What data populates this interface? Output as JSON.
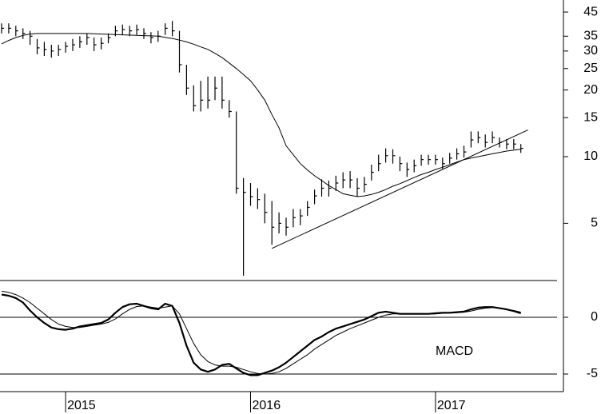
{
  "chart_data": {
    "type": "ohlc",
    "log_scale": true,
    "color": "#000000",
    "categories": [
      null,
      null,
      null,
      null,
      null,
      null,
      null,
      null,
      null,
      "2015",
      null,
      null,
      null,
      null,
      null,
      null,
      null,
      null,
      null,
      null,
      null,
      null,
      null,
      null,
      null,
      null,
      null,
      null,
      null,
      null,
      null,
      null,
      null,
      null,
      null,
      "2016",
      null,
      null,
      null,
      null,
      null,
      null,
      null,
      null,
      null,
      null,
      null,
      null,
      null,
      null,
      null,
      null,
      null,
      null,
      null,
      null,
      null,
      null,
      null,
      null,
      null,
      "2017",
      null,
      null,
      null,
      null,
      null,
      null,
      null,
      null,
      null,
      null,
      null,
      null
    ],
    "high": [
      40,
      40,
      39,
      38,
      37,
      34,
      33,
      32,
      32,
      33,
      34,
      35,
      36,
      34.5,
      34.5,
      36,
      39,
      39.5,
      39,
      39.5,
      38,
      36.5,
      37,
      40,
      41,
      37,
      26,
      21,
      22,
      23,
      23,
      23,
      18,
      16,
      8,
      7.6,
      7.2,
      6.8,
      6.3,
      5.6,
      5.3,
      5.8,
      5.8,
      6.3,
      7.1,
      7.9,
      7.8,
      8.2,
      8.5,
      8.6,
      8.0,
      8.1,
      9.2,
      10.2,
      10.9,
      10.8,
      10,
      9.4,
      9.7,
      10.2,
      10.2,
      10.2,
      9.9,
      10.4,
      10.9,
      11.2,
      13.0,
      13.0,
      12.6,
      13.0,
      12.2,
      12.0,
      12.0,
      11.4
    ],
    "low": [
      36,
      36,
      35,
      34,
      32,
      29,
      28.5,
      28,
      28.5,
      29.5,
      30,
      31,
      32,
      30,
      30.5,
      32.5,
      35,
      35.5,
      35,
      35.5,
      34,
      32.5,
      33,
      35.5,
      35,
      24,
      19,
      16,
      16,
      16.5,
      18,
      16.5,
      15,
      6.8,
      2.9,
      6.0,
      5.8,
      5.0,
      4.0,
      4.5,
      4.4,
      4.8,
      4.9,
      5.4,
      6.1,
      6.6,
      6.6,
      7.0,
      7.2,
      7.2,
      6.6,
      6.9,
      7.8,
      8.6,
      9.4,
      9.3,
      8.6,
      8.1,
      8.5,
      9.1,
      9.2,
      9.2,
      8.8,
      9.3,
      9.7,
      9.9,
      11.0,
      11.5,
      11.0,
      11.5,
      11.0,
      10.8,
      10.8,
      10.4
    ],
    "close": [
      38,
      38,
      37,
      36,
      35,
      31,
      30.5,
      30,
      30.5,
      31.5,
      32,
      33,
      34.5,
      32,
      32.5,
      34.5,
      37,
      37.5,
      37,
      37.5,
      36,
      34.5,
      35,
      38,
      37,
      26,
      20.4,
      17,
      18,
      18,
      20.4,
      18,
      16,
      7.2,
      6.9,
      6.6,
      6.4,
      5.6,
      4.8,
      5.0,
      4.8,
      5.3,
      5.4,
      5.9,
      6.65,
      7.2,
      7.2,
      7.6,
      7.85,
      7.85,
      7.2,
      7.5,
      8.5,
      9.3,
      10.1,
      10.1,
      9.3,
      8.75,
      9.1,
      9.7,
      9.7,
      9.7,
      9.3,
      9.85,
      10.3,
      10.5,
      11.9,
      12.2,
      11.6,
      12.2,
      11.6,
      11.4,
      11.4,
      10.9
    ],
    "moving_average": {
      "values": [
        32.3,
        33.5,
        34.5,
        35.3,
        35.8,
        36,
        36,
        36,
        36,
        36,
        36,
        36,
        36,
        35.9,
        35.8,
        35.7,
        35.6,
        35.5,
        35.4,
        35.3,
        35.2,
        35.1,
        35,
        34.6,
        34.2,
        33.6,
        33,
        32.2,
        31.3,
        30.5,
        29.3,
        28,
        26.5,
        25,
        23.5,
        22,
        20,
        18,
        15.5,
        13.5,
        11.2,
        10.2,
        9.3,
        8.7,
        8.2,
        7.8,
        7.4,
        7.1,
        6.8,
        6.7,
        6.6,
        6.65,
        6.75,
        6.9,
        7.1,
        7.35,
        7.55,
        7.8,
        8.05,
        8.3,
        8.5,
        8.75,
        8.95,
        9.2,
        9.45,
        9.7,
        9.85,
        10,
        10.15,
        10.3,
        10.45,
        10.6,
        10.7,
        10.8
      ]
    },
    "trendline": {
      "from": [
        38,
        3.85
      ],
      "to": [
        74,
        13.2
      ]
    },
    "ylim": [
      2.78,
      51
    ],
    "yticks": [
      5,
      10,
      15,
      20,
      25,
      30,
      35,
      45
    ],
    "macd": {
      "label": "MACD",
      "ylim": [
        -6.55,
        3.17
      ],
      "yticks": [
        0,
        -5
      ],
      "grid": true,
      "series": [
        {
          "color": "#000000",
          "width": 2.2,
          "values": [
            2.0,
            1.9,
            1.7,
            1.3,
            0.6,
            0.0,
            -0.5,
            -0.9,
            -1.05,
            -1.1,
            -1.0,
            -0.8,
            -0.7,
            -0.6,
            -0.5,
            -0.2,
            0.4,
            0.9,
            1.15,
            1.2,
            1.0,
            0.8,
            0.7,
            1.2,
            1.0,
            -0.5,
            -2.5,
            -4.0,
            -4.6,
            -4.8,
            -4.6,
            -4.2,
            -4.1,
            -4.5,
            -4.9,
            -5.1,
            -5.1,
            -4.9,
            -4.7,
            -4.4,
            -4.0,
            -3.5,
            -3.0,
            -2.5,
            -2.0,
            -1.7,
            -1.3,
            -1.0,
            -0.8,
            -0.6,
            -0.4,
            -0.2,
            0.1,
            0.4,
            0.5,
            0.4,
            0.3,
            0.3,
            0.3,
            0.3,
            0.3,
            0.35,
            0.4,
            0.4,
            0.45,
            0.5,
            0.7,
            0.85,
            0.9,
            0.9,
            0.8,
            0.7,
            0.55,
            0.35
          ]
        },
        {
          "color": "#000000",
          "width": 1,
          "values": [
            2.3,
            2.2,
            2.0,
            1.7,
            1.3,
            0.8,
            0.3,
            -0.2,
            -0.6,
            -0.8,
            -0.9,
            -0.9,
            -0.8,
            -0.7,
            -0.6,
            -0.45,
            -0.15,
            0.3,
            0.7,
            0.95,
            1.0,
            0.9,
            0.8,
            0.9,
            1.0,
            0.3,
            -1.0,
            -2.3,
            -3.3,
            -3.9,
            -4.2,
            -4.3,
            -4.3,
            -4.4,
            -4.6,
            -4.8,
            -4.95,
            -5.0,
            -4.95,
            -4.8,
            -4.5,
            -4.1,
            -3.7,
            -3.3,
            -2.8,
            -2.4,
            -2.0,
            -1.6,
            -1.3,
            -1.0,
            -0.75,
            -0.5,
            -0.25,
            0.0,
            0.2,
            0.3,
            0.3,
            0.3,
            0.3,
            0.3,
            0.3,
            0.3,
            0.35,
            0.38,
            0.4,
            0.45,
            0.55,
            0.7,
            0.8,
            0.85,
            0.8,
            0.7,
            0.6,
            0.45
          ]
        }
      ]
    }
  }
}
